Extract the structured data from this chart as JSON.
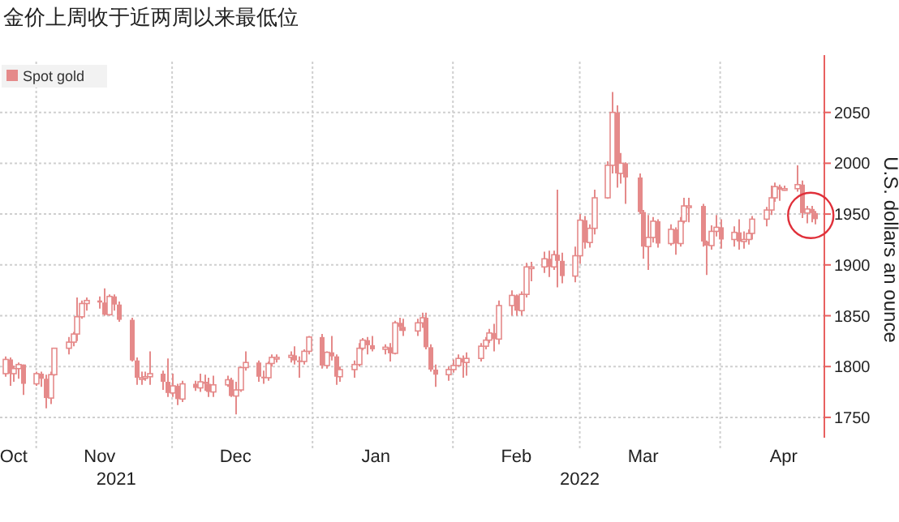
{
  "chart_data": {
    "type": "candlestick",
    "title": "金价上周收于近两周以来最低位",
    "ylabel": "U.S. dollars an ounce",
    "x": [
      "2021-10-25",
      "2021-10-26",
      "2021-10-27",
      "2021-10-28",
      "2021-10-29",
      "2021-11-01",
      "2021-11-02",
      "2021-11-03",
      "2021-11-04",
      "2021-11-05",
      "2021-11-08",
      "2021-11-09",
      "2021-11-10",
      "2021-11-11",
      "2021-11-12",
      "2021-11-15",
      "2021-11-16",
      "2021-11-17",
      "2021-11-18",
      "2021-11-19",
      "2021-11-22",
      "2021-11-23",
      "2021-11-24",
      "2021-11-25",
      "2021-11-26",
      "2021-11-29",
      "2021-11-30",
      "2021-12-01",
      "2021-12-02",
      "2021-12-03",
      "2021-12-06",
      "2021-12-07",
      "2021-12-08",
      "2021-12-09",
      "2021-12-10",
      "2021-12-13",
      "2021-12-14",
      "2021-12-15",
      "2021-12-16",
      "2021-12-17",
      "2021-12-20",
      "2021-12-21",
      "2021-12-22",
      "2021-12-23",
      "2021-12-24",
      "2021-12-27",
      "2021-12-28",
      "2021-12-29",
      "2021-12-30",
      "2021-12-31",
      "2022-01-03",
      "2022-01-04",
      "2022-01-05",
      "2022-01-06",
      "2022-01-07",
      "2022-01-10",
      "2022-01-11",
      "2022-01-12",
      "2022-01-13",
      "2022-01-14",
      "2022-01-17",
      "2022-01-18",
      "2022-01-19",
      "2022-01-20",
      "2022-01-21",
      "2022-01-24",
      "2022-01-25",
      "2022-01-26",
      "2022-01-27",
      "2022-01-28",
      "2022-01-31",
      "2022-02-01",
      "2022-02-02",
      "2022-02-03",
      "2022-02-04",
      "2022-02-07",
      "2022-02-08",
      "2022-02-09",
      "2022-02-10",
      "2022-02-11",
      "2022-02-14",
      "2022-02-15",
      "2022-02-16",
      "2022-02-17",
      "2022-02-18",
      "2022-02-21",
      "2022-02-22",
      "2022-02-23",
      "2022-02-24",
      "2022-02-25",
      "2022-02-28",
      "2022-03-01",
      "2022-03-02",
      "2022-03-03",
      "2022-03-04",
      "2022-03-07",
      "2022-03-08",
      "2022-03-09",
      "2022-03-10",
      "2022-03-11",
      "2022-03-14",
      "2022-03-15",
      "2022-03-16",
      "2022-03-17",
      "2022-03-18",
      "2022-03-21",
      "2022-03-22",
      "2022-03-23",
      "2022-03-24",
      "2022-03-25",
      "2022-03-28",
      "2022-03-29",
      "2022-03-30",
      "2022-03-31",
      "2022-04-01",
      "2022-04-04",
      "2022-04-05",
      "2022-04-06",
      "2022-04-07",
      "2022-04-08",
      "2022-04-11",
      "2022-04-12",
      "2022-04-13",
      "2022-04-14",
      "2022-04-15",
      "2022-04-18",
      "2022-04-19",
      "2022-04-20",
      "2022-04-21",
      "2022-04-22"
    ],
    "series": [
      {
        "name": "Spot gold",
        "color": "#e58a8a",
        "ohlc": [
          [
            1793,
            1810,
            1790,
            1807
          ],
          [
            1807,
            1809,
            1781,
            1793
          ],
          [
            1793,
            1801,
            1785,
            1798
          ],
          [
            1798,
            1804,
            1788,
            1802
          ],
          [
            1802,
            1802,
            1772,
            1783
          ],
          [
            1783,
            1795,
            1781,
            1793
          ],
          [
            1793,
            1795,
            1780,
            1788
          ],
          [
            1788,
            1792,
            1759,
            1769
          ],
          [
            1769,
            1795,
            1763,
            1792
          ],
          [
            1792,
            1818,
            1791,
            1818
          ],
          [
            1818,
            1829,
            1812,
            1824
          ],
          [
            1824,
            1834,
            1820,
            1832
          ],
          [
            1832,
            1868,
            1825,
            1849
          ],
          [
            1849,
            1865,
            1847,
            1862
          ],
          [
            1862,
            1868,
            1855,
            1865
          ],
          [
            1865,
            1869,
            1857,
            1863
          ],
          [
            1863,
            1877,
            1850,
            1851
          ],
          [
            1851,
            1871,
            1850,
            1869
          ],
          [
            1869,
            1871,
            1855,
            1861
          ],
          [
            1861,
            1864,
            1844,
            1846
          ],
          [
            1846,
            1848,
            1805,
            1806
          ],
          [
            1806,
            1809,
            1782,
            1789
          ],
          [
            1789,
            1795,
            1782,
            1789
          ],
          [
            1789,
            1795,
            1786,
            1790
          ],
          [
            1790,
            1815,
            1782,
            1793
          ],
          [
            1793,
            1796,
            1777,
            1785
          ],
          [
            1785,
            1808,
            1770,
            1774
          ],
          [
            1774,
            1793,
            1770,
            1781
          ],
          [
            1781,
            1783,
            1762,
            1768
          ],
          [
            1768,
            1786,
            1765,
            1783
          ],
          [
            1783,
            1786,
            1776,
            1779
          ],
          [
            1779,
            1793,
            1775,
            1785
          ],
          [
            1785,
            1792,
            1776,
            1783
          ],
          [
            1783,
            1789,
            1770,
            1775
          ],
          [
            1775,
            1791,
            1770,
            1782
          ],
          [
            1782,
            1791,
            1780,
            1787
          ],
          [
            1787,
            1789,
            1770,
            1771
          ],
          [
            1771,
            1785,
            1753,
            1777
          ],
          [
            1777,
            1800,
            1775,
            1799
          ],
          [
            1799,
            1815,
            1796,
            1804
          ],
          [
            1804,
            1806,
            1785,
            1790
          ],
          [
            1790,
            1796,
            1783,
            1789
          ],
          [
            1789,
            1805,
            1786,
            1803
          ],
          [
            1803,
            1812,
            1800,
            1809
          ],
          [
            1809,
            1812,
            1804,
            1809
          ],
          [
            1809,
            1815,
            1804,
            1811
          ],
          [
            1811,
            1820,
            1802,
            1806
          ],
          [
            1806,
            1810,
            1789,
            1805
          ],
          [
            1805,
            1817,
            1802,
            1815
          ],
          [
            1815,
            1830,
            1812,
            1829
          ],
          [
            1829,
            1832,
            1798,
            1801
          ],
          [
            1801,
            1815,
            1798,
            1814
          ],
          [
            1814,
            1830,
            1806,
            1810
          ],
          [
            1810,
            1812,
            1782,
            1790
          ],
          [
            1790,
            1800,
            1785,
            1797
          ],
          [
            1797,
            1806,
            1789,
            1802
          ],
          [
            1802,
            1823,
            1800,
            1818
          ],
          [
            1818,
            1828,
            1816,
            1826
          ],
          [
            1826,
            1829,
            1812,
            1821
          ],
          [
            1821,
            1830,
            1815,
            1817
          ],
          [
            1817,
            1822,
            1812,
            1819
          ],
          [
            1819,
            1823,
            1805,
            1813
          ],
          [
            1813,
            1845,
            1812,
            1843
          ],
          [
            1843,
            1848,
            1835,
            1839
          ],
          [
            1839,
            1847,
            1830,
            1835
          ],
          [
            1835,
            1847,
            1830,
            1843
          ],
          [
            1843,
            1853,
            1838,
            1848
          ],
          [
            1848,
            1853,
            1817,
            1819
          ],
          [
            1819,
            1822,
            1795,
            1797
          ],
          [
            1797,
            1802,
            1780,
            1792
          ],
          [
            1792,
            1800,
            1786,
            1797
          ],
          [
            1797,
            1807,
            1794,
            1801
          ],
          [
            1801,
            1812,
            1800,
            1808
          ],
          [
            1808,
            1811,
            1789,
            1804
          ],
          [
            1804,
            1814,
            1791,
            1808
          ],
          [
            1808,
            1823,
            1805,
            1820
          ],
          [
            1820,
            1829,
            1817,
            1826
          ],
          [
            1826,
            1837,
            1823,
            1833
          ],
          [
            1833,
            1842,
            1815,
            1827
          ],
          [
            1827,
            1865,
            1822,
            1860
          ],
          [
            1860,
            1875,
            1850,
            1870
          ],
          [
            1870,
            1871,
            1850,
            1855
          ],
          [
            1855,
            1874,
            1850,
            1871
          ],
          [
            1871,
            1902,
            1868,
            1898
          ],
          [
            1898,
            1903,
            1884,
            1898
          ],
          [
            1898,
            1913,
            1892,
            1906
          ],
          [
            1906,
            1914,
            1888,
            1898
          ],
          [
            1898,
            1914,
            1895,
            1910
          ],
          [
            1910,
            1974,
            1878,
            1904
          ],
          [
            1904,
            1912,
            1882,
            1889
          ],
          [
            1889,
            1918,
            1883,
            1909
          ],
          [
            1909,
            1950,
            1901,
            1944
          ],
          [
            1944,
            1948,
            1916,
            1922
          ],
          [
            1922,
            1940,
            1917,
            1936
          ],
          [
            1936,
            1974,
            1930,
            1966
          ],
          [
            1966,
            2002,
            1965,
            1998
          ],
          [
            1998,
            2070,
            1990,
            2050
          ],
          [
            2050,
            2057,
            1976,
            1990
          ],
          [
            1990,
            2010,
            1980,
            2000
          ],
          [
            2000,
            2001,
            1960,
            1986
          ],
          [
            1986,
            1990,
            1950,
            1952
          ],
          [
            1952,
            1954,
            1906,
            1918
          ],
          [
            1918,
            1949,
            1895,
            1927
          ],
          [
            1927,
            1947,
            1922,
            1943
          ],
          [
            1943,
            1945,
            1917,
            1921
          ],
          [
            1921,
            1940,
            1919,
            1935
          ],
          [
            1935,
            1937,
            1910,
            1921
          ],
          [
            1921,
            1947,
            1918,
            1943
          ],
          [
            1943,
            1966,
            1941,
            1958
          ],
          [
            1958,
            1966,
            1942,
            1958
          ],
          [
            1958,
            1960,
            1918,
            1923
          ],
          [
            1923,
            1924,
            1890,
            1919
          ],
          [
            1919,
            1939,
            1915,
            1933
          ],
          [
            1933,
            1949,
            1928,
            1937
          ],
          [
            1937,
            1945,
            1916,
            1925
          ],
          [
            1925,
            1938,
            1918,
            1932
          ],
          [
            1932,
            1945,
            1915,
            1923
          ],
          [
            1923,
            1933,
            1916,
            1925
          ],
          [
            1925,
            1935,
            1920,
            1931
          ],
          [
            1931,
            1948,
            1925,
            1945
          ],
          [
            1945,
            1957,
            1938,
            1954
          ],
          [
            1954,
            1978,
            1949,
            1966
          ],
          [
            1966,
            1981,
            1962,
            1977
          ],
          [
            1977,
            1979,
            1963,
            1974
          ],
          [
            1974,
            1978,
            1973,
            1975
          ],
          [
            1975,
            1998,
            1972,
            1979
          ],
          [
            1979,
            1983,
            1946,
            1951
          ],
          [
            1951,
            1958,
            1941,
            1955
          ],
          [
            1955,
            1958,
            1942,
            1951
          ],
          [
            1951,
            1953,
            1940,
            1945
          ]
        ]
      }
    ],
    "xlim": [
      "2021-10-24",
      "2022-04-24"
    ],
    "xticks": [
      {
        "value": "2021-10-27",
        "label": "Oct"
      },
      {
        "value": "2021-11-01",
        "label": null
      },
      {
        "value": "2021-11-15",
        "label": "Nov"
      },
      {
        "value": "2021-12-01",
        "label": null
      },
      {
        "value": "2021-12-15",
        "label": "Dec"
      },
      {
        "value": "2022-01-01",
        "label": null
      },
      {
        "value": "2022-01-15",
        "label": "Jan"
      },
      {
        "value": "2022-02-01",
        "label": null
      },
      {
        "value": "2022-02-15",
        "label": "Feb"
      },
      {
        "value": "2022-03-01",
        "label": null
      },
      {
        "value": "2022-03-15",
        "label": "Mar"
      },
      {
        "value": "2022-04-01",
        "label": null
      },
      {
        "value": "2022-04-15",
        "label": "Apr"
      }
    ],
    "ylim": [
      1730,
      2100
    ],
    "yticks": [
      1750,
      1800,
      1850,
      1900,
      1950,
      2000,
      2050
    ],
    "annotations": [
      "2021",
      "2022"
    ],
    "grid": true,
    "legend": "top left"
  }
}
